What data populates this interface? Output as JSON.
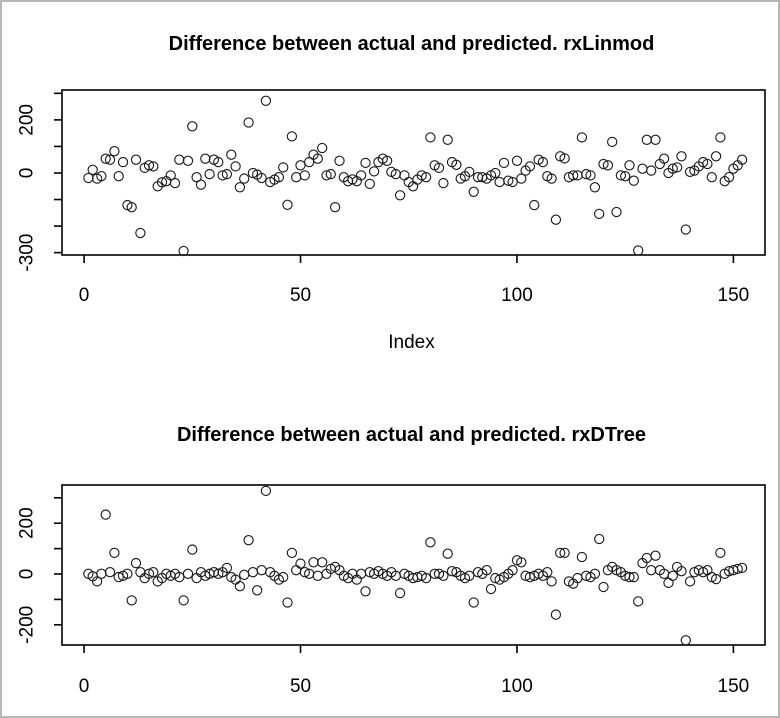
{
  "figure": {
    "background": "#ffffff",
    "frame_border_color": "#b7b7b7",
    "point_color": "#1c1c1c",
    "axis_color": "#000000"
  },
  "chart_data": [
    {
      "type": "scatter",
      "title": "Difference between actual and predicted. rxLinmod",
      "xlabel": "Index",
      "ylabel": "",
      "marker": "open-circle",
      "grid": false,
      "legend": "none",
      "xlim": [
        -5.1,
        157.3
      ],
      "ylim": [
        -308.9,
        312.6
      ],
      "x_ticks": [
        {
          "v": 0,
          "label": "0"
        },
        {
          "v": 50,
          "label": "50"
        },
        {
          "v": 100,
          "label": "100"
        },
        {
          "v": 150,
          "label": "150"
        }
      ],
      "y_ticks": [
        {
          "v": 300,
          "label": ""
        },
        {
          "v": 200,
          "label": "200"
        },
        {
          "v": 100,
          "label": ""
        },
        {
          "v": 0,
          "label": "0"
        },
        {
          "v": -100,
          "label": ""
        },
        {
          "v": -200,
          "label": ""
        },
        {
          "v": -300,
          "label": "-300"
        }
      ],
      "x_start": 1,
      "x_step": 1,
      "y": [
        -19,
        12,
        -21,
        -12,
        54,
        50,
        82,
        -12,
        41,
        -121,
        -129,
        50,
        -226,
        19,
        29,
        25,
        -50,
        -35,
        -31,
        -9,
        -38,
        50,
        -294,
        46,
        176,
        -16,
        -44,
        54,
        -4,
        50,
        41,
        -9,
        -4,
        69,
        25,
        -54,
        -21,
        190,
        0,
        -6,
        -19,
        272,
        -34,
        -25,
        -16,
        21,
        -120,
        138,
        -16,
        29,
        -9,
        41,
        69,
        54,
        94,
        -9,
        -4,
        -129,
        46,
        -16,
        -31,
        -24,
        -31,
        -9,
        38,
        -41,
        6,
        41,
        54,
        46,
        4,
        -4,
        -84,
        -9,
        -34,
        -50,
        -25,
        -9,
        -16,
        134,
        29,
        19,
        -38,
        125,
        41,
        31,
        -21,
        -12,
        4,
        -71,
        -16,
        -16,
        -21,
        -9,
        0,
        -34,
        38,
        -29,
        -34,
        46,
        -21,
        9,
        25,
        -121,
        50,
        41,
        -12,
        -21,
        -176,
        63,
        55,
        -16,
        -9,
        -9,
        134,
        -4,
        -9,
        -54,
        -154,
        34,
        29,
        117,
        -147,
        -9,
        -12,
        29,
        -29,
        -292,
        16,
        125,
        9,
        125,
        34,
        54,
        0,
        16,
        21,
        63,
        -213,
        4,
        9,
        25,
        41,
        34,
        -16,
        63,
        134,
        -31,
        -16,
        16,
        29,
        50
      ]
    },
    {
      "type": "scatter",
      "title": "Difference between actual and predicted. rxDTree",
      "xlabel": "",
      "ylabel": "",
      "marker": "open-circle",
      "grid": false,
      "legend": "none",
      "xlim": [
        -5.1,
        157.3
      ],
      "ylim": [
        -279.5,
        350.4
      ],
      "x_ticks": [
        {
          "v": 0,
          "label": "0"
        },
        {
          "v": 50,
          "label": "50"
        },
        {
          "v": 100,
          "label": "100"
        },
        {
          "v": 150,
          "label": "150"
        }
      ],
      "y_ticks": [
        {
          "v": 300,
          "label": ""
        },
        {
          "v": 200,
          "label": "200"
        },
        {
          "v": 100,
          "label": ""
        },
        {
          "v": 0,
          "label": "0"
        },
        {
          "v": -100,
          "label": ""
        },
        {
          "v": -200,
          "label": "-200"
        }
      ],
      "x_start": 1,
      "x_step": 1,
      "y": [
        1,
        -9,
        -29,
        1,
        234,
        7,
        83,
        -12,
        -7,
        1,
        -104,
        43,
        7,
        -16,
        1,
        7,
        -29,
        -16,
        1,
        -7,
        1,
        -12,
        -104,
        1,
        96,
        -16,
        7,
        -7,
        1,
        7,
        1,
        7,
        24,
        -12,
        -22,
        -48,
        -3,
        133,
        7,
        -64,
        15,
        327,
        7,
        -7,
        -22,
        -12,
        -112,
        83,
        15,
        41,
        7,
        1,
        46,
        -7,
        46,
        1,
        20,
        28,
        15,
        -7,
        -16,
        1,
        -22,
        1,
        -68,
        7,
        1,
        11,
        1,
        -7,
        7,
        -7,
        -75,
        1,
        -7,
        -16,
        -12,
        -7,
        -16,
        125,
        1,
        1,
        -7,
        80,
        11,
        7,
        -7,
        -16,
        -7,
        -112,
        7,
        1,
        15,
        -59,
        -16,
        -22,
        -12,
        1,
        15,
        54,
        46,
        -7,
        -12,
        -7,
        1,
        -7,
        7,
        -29,
        -160,
        83,
        83,
        -29,
        -38,
        -16,
        67,
        -7,
        -12,
        1,
        138,
        -51,
        15,
        28,
        15,
        7,
        -7,
        -12,
        -12,
        -108,
        43,
        63,
        15,
        72,
        15,
        1,
        -35,
        -7,
        28,
        11,
        -261,
        -29,
        7,
        15,
        7,
        15,
        -12,
        -20,
        83,
        1,
        11,
        15,
        20,
        24
      ]
    }
  ]
}
